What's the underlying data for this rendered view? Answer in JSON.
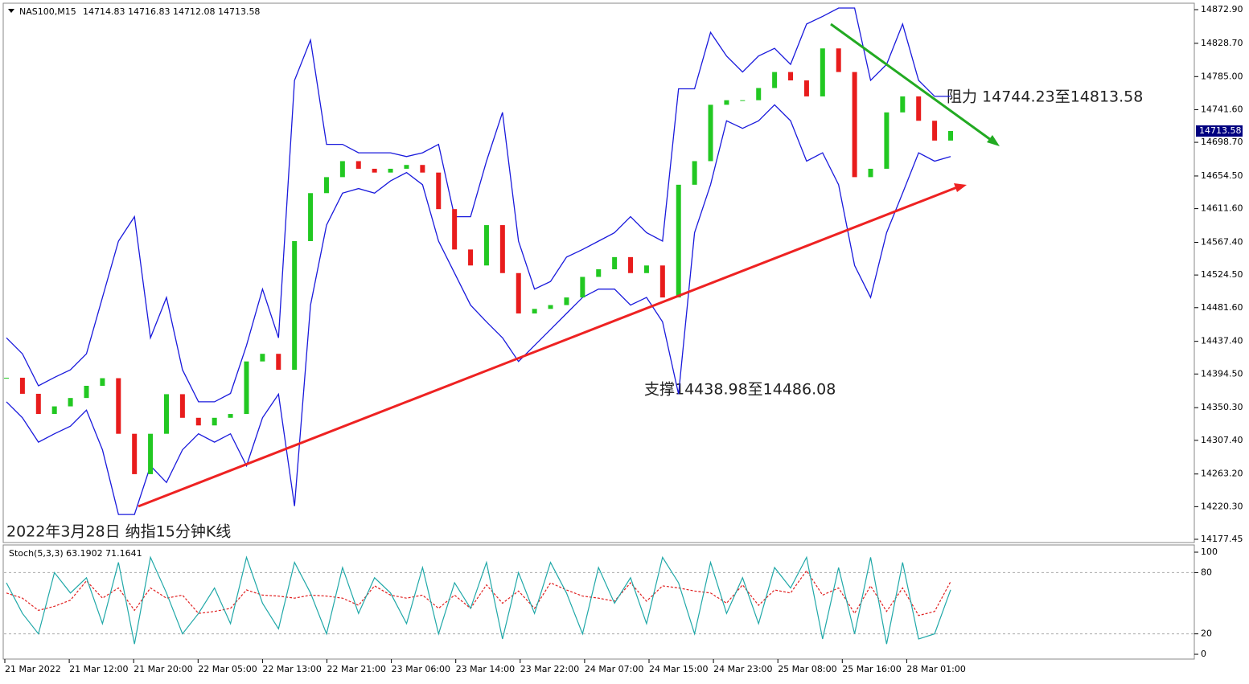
{
  "chart_data": [
    {
      "type": "candlestick",
      "title": "NAS100,M15",
      "ohlc": "14714.83 14716.83 14712.08 14713.58",
      "values": [
        14389.6,
        14368.5,
        14342,
        14352,
        14363,
        14379,
        14389,
        14316,
        14263,
        14316,
        14368,
        14337,
        14327,
        14337,
        14342,
        14411,
        14421,
        14400,
        14569,
        14632,
        14653,
        14674,
        14664,
        14659,
        14664,
        14669,
        14659,
        14611,
        14558,
        14537,
        14590,
        14527,
        14474,
        14480,
        14485,
        14495,
        14522,
        14532,
        14548,
        14527,
        14537,
        14495,
        14643,
        14674,
        14748,
        14754,
        14754,
        14770,
        14791,
        14780,
        14759,
        14822,
        14791,
        14653,
        14664,
        14738,
        14759,
        14727,
        14701,
        14713.58
      ],
      "upper_band": [
        14442,
        14421,
        14379,
        14390,
        14400,
        14421,
        14495,
        14569,
        14601,
        14442,
        14495,
        14400,
        14358,
        14358,
        14369,
        14432,
        14506,
        14442,
        14780,
        14833,
        14696,
        14696,
        14685,
        14685,
        14685,
        14680,
        14685,
        14696,
        14601,
        14601,
        14674,
        14738,
        14569,
        14506,
        14516,
        14548,
        14558,
        14569,
        14580,
        14601,
        14580,
        14569,
        14769,
        14769,
        14843,
        14812,
        14791,
        14812,
        14822,
        14801,
        14854,
        14864,
        14875,
        14875,
        14780,
        14801,
        14854,
        14780,
        14759,
        14759
      ],
      "lower_band": [
        14358,
        14337,
        14305,
        14316,
        14326,
        14347,
        14295,
        14210,
        14210,
        14274,
        14252,
        14295,
        14316,
        14305,
        14316,
        14274,
        14337,
        14368,
        14221,
        14485,
        14590,
        14632,
        14638,
        14632,
        14648,
        14659,
        14643,
        14569,
        14527,
        14485,
        14463,
        14442,
        14411,
        14432,
        14453,
        14474,
        14495,
        14506,
        14506,
        14485,
        14495,
        14463,
        14368,
        14580,
        14643,
        14727,
        14717,
        14727,
        14748,
        14727,
        14674,
        14685,
        14643,
        14537,
        14495,
        14580,
        14632,
        14685,
        14674,
        14680
      ],
      "up_color": "#22c822",
      "down_color": "#e81c1c",
      "band_color": "#1a1adc",
      "last_price": 14713.58,
      "ylim": [
        14173.2,
        14880.3
      ],
      "yticks": [
        {
          "value": 14872.9,
          "label": "14872.90"
        },
        {
          "value": 14828.7,
          "label": "14828.70"
        },
        {
          "value": 14785,
          "label": "14785.00"
        },
        {
          "value": 14741.6,
          "label": "14741.60"
        },
        {
          "value": 14698.7,
          "label": "14698.70"
        },
        {
          "value": 14654.5,
          "label": "14654.50"
        },
        {
          "value": 14611.6,
          "label": "14611.60"
        },
        {
          "value": 14567.4,
          "label": "14567.40"
        },
        {
          "value": 14524.5,
          "label": "14524.50"
        },
        {
          "value": 14481.6,
          "label": "14481.60"
        },
        {
          "value": 14437.4,
          "label": "14437.40"
        },
        {
          "value": 14394.5,
          "label": "14394.50"
        },
        {
          "value": 14350.3,
          "label": "14350.30"
        },
        {
          "value": 14307.4,
          "label": "14307.40"
        },
        {
          "value": 14263.2,
          "label": "14263.20"
        },
        {
          "value": 14220.3,
          "label": "14220.30"
        },
        14177.45
      ],
      "annotations": [
        "阻力 14744.23至14813.58",
        "支撑14438.98至14486.08",
        "2022年3月28日 纳指15分钟K线"
      ],
      "time_labels": [
        "21 Mar 2022",
        "21 Mar 12:00",
        "21 Mar 20:00",
        "22 Mar 05:00",
        "22 Mar 13:00",
        "22 Mar 21:00",
        "23 Mar 06:00",
        "23 Mar 14:00",
        "23 Mar 22:00",
        "24 Mar 07:00",
        "24 Mar 15:00",
        "24 Mar 23:00",
        "25 Mar 08:00",
        "25 Mar 16:00",
        "28 Mar 01:00"
      ]
    },
    {
      "type": "stochastic",
      "label": "Stoch(5,3,3) 63.1902 71.1641",
      "main_values": [
        70,
        40,
        20,
        80,
        60,
        75,
        30,
        90,
        10,
        95,
        60,
        20,
        40,
        65,
        30,
        95,
        50,
        25,
        90,
        60,
        20,
        85,
        40,
        75,
        60,
        30,
        85,
        20,
        70,
        45,
        90,
        15,
        80,
        40,
        90,
        60,
        20,
        85,
        50,
        75,
        30,
        95,
        70,
        20,
        90,
        40,
        75,
        30,
        85,
        65,
        95,
        15,
        85,
        20,
        95,
        10,
        90,
        15,
        20,
        63.1902
      ],
      "signal_values": [
        60,
        55,
        43,
        47,
        53,
        72,
        55,
        65,
        43,
        65,
        55,
        58,
        40,
        42,
        45,
        63,
        58,
        57,
        55,
        58,
        57,
        55,
        48,
        67,
        58,
        55,
        58,
        45,
        58,
        45,
        68,
        50,
        62,
        45,
        70,
        63,
        57,
        55,
        52,
        70,
        52,
        67,
        65,
        62,
        60,
        50,
        68,
        48,
        63,
        60,
        82,
        58,
        65,
        40,
        67,
        42,
        65,
        38,
        42,
        71.1641
      ],
      "main_color": "#20a8a8",
      "signal_color": "#e02020",
      "ylim": [
        -4.7,
        106.3
      ],
      "yticks": [
        0,
        20,
        80,
        100
      ]
    }
  ]
}
